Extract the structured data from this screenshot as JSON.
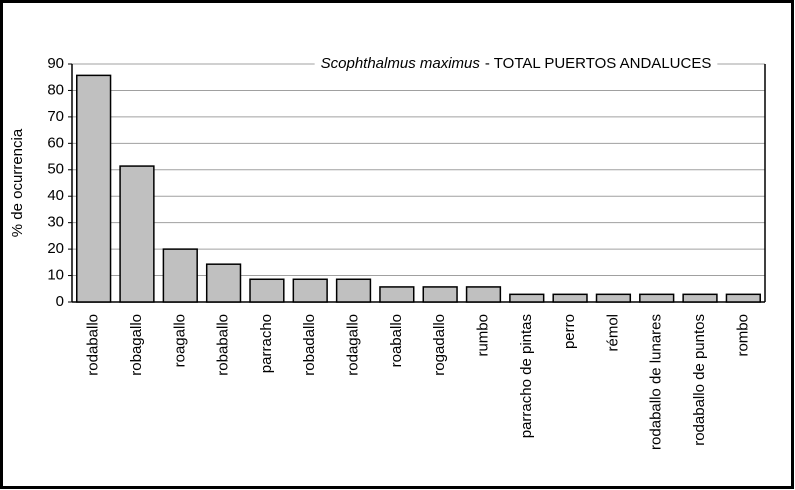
{
  "chart_data": {
    "type": "bar",
    "title_species": "Scophthalmus maximus",
    "title": "- TOTAL PUERTOS ANDALUCES",
    "y_label": "% de ocurrencia",
    "categories": [
      "rodaballo",
      "robagallo",
      "roagallo",
      "robaballo",
      "parracho",
      "robadallo",
      "rodagallo",
      "roaballo",
      "rogadallo",
      "rumbo",
      "parracho de pintas",
      "perro",
      "rémol",
      "rodaballo de lunares",
      "rodaballo de puntos",
      "rombo"
    ],
    "values": [
      85.7,
      51.4,
      20,
      14.3,
      8.6,
      8.6,
      8.6,
      5.7,
      5.7,
      5.7,
      2.9,
      2.9,
      2.9,
      2.9,
      2.9,
      2.9
    ],
    "color": "#c0c0c0",
    "ylim": [
      0,
      90
    ],
    "yticks": [
      0,
      10,
      20,
      30,
      40,
      50,
      60,
      70,
      80,
      90
    ],
    "grid": true
  }
}
